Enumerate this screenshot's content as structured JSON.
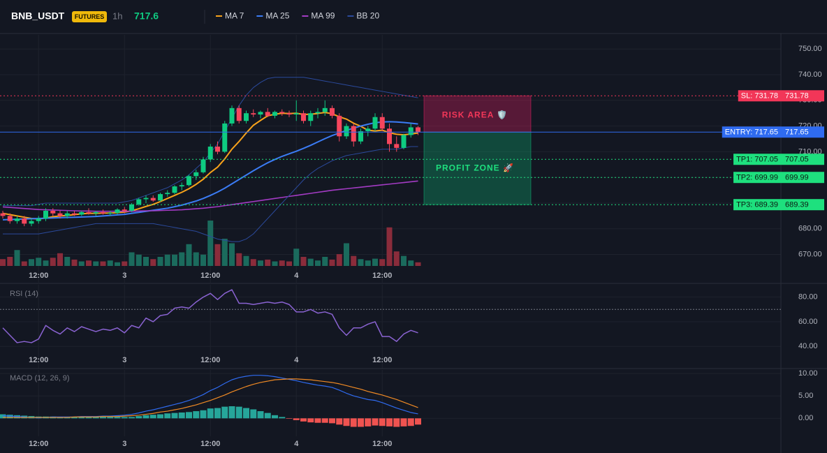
{
  "header": {
    "symbol": "BNB_USDT",
    "badge": "FUTURES",
    "interval": "1h",
    "price": 717.6
  },
  "chart_data": [
    {
      "type": "candlestick",
      "categories": [
        null,
        null,
        null,
        null,
        null,
        "12:00",
        null,
        null,
        null,
        null,
        null,
        null,
        null,
        null,
        null,
        null,
        null,
        "3",
        null,
        null,
        null,
        null,
        null,
        null,
        null,
        null,
        null,
        null,
        null,
        "12:00",
        null,
        null,
        null,
        null,
        null,
        null,
        null,
        null,
        null,
        null,
        null,
        "4",
        null,
        null,
        null,
        null,
        null,
        null,
        null,
        null,
        null,
        null,
        null,
        "12:00",
        null,
        null,
        null,
        null,
        null
      ],
      "open": [
        686,
        685,
        683,
        684,
        682,
        683,
        684,
        687,
        686,
        685,
        686,
        685.5,
        686.5,
        686,
        686.5,
        686,
        686.2,
        687.5,
        687,
        689.5,
        691.5,
        692,
        691,
        693.5,
        694,
        696.5,
        697,
        700.5,
        702,
        707,
        712,
        710,
        721,
        727,
        722,
        725,
        724.5,
        725.5,
        724,
        725.5,
        725,
        724.5,
        725,
        722,
        725,
        725.5,
        727,
        724,
        716,
        720,
        714,
        718,
        719,
        723.5,
        719,
        713,
        711.5,
        716.5,
        719.5
      ],
      "high": [
        687,
        686,
        685,
        685,
        684,
        685,
        688,
        688,
        687,
        687,
        687,
        687,
        688,
        687,
        687.5,
        687,
        688,
        688.5,
        690,
        692,
        693,
        693,
        694,
        695,
        697,
        698,
        701,
        703,
        708,
        713,
        714,
        722,
        728,
        728,
        726,
        726.5,
        726,
        727,
        726,
        726.5,
        726,
        730,
        726,
        726,
        727,
        730,
        728,
        725,
        721,
        721,
        719,
        720,
        725,
        725,
        721,
        716,
        717,
        721,
        720
      ],
      "low": [
        684,
        682,
        682,
        681,
        681,
        682,
        683,
        685,
        684,
        684,
        685,
        685,
        685.5,
        685,
        685.5,
        685,
        685.5,
        686,
        686.5,
        689,
        690,
        690.5,
        690.5,
        692.5,
        693.5,
        695,
        696.5,
        699,
        701.5,
        706,
        709,
        709.5,
        720,
        721,
        721,
        723.5,
        723,
        723.5,
        723,
        724,
        723.5,
        722,
        721,
        720,
        723,
        724,
        723,
        714,
        715,
        712,
        713,
        716,
        718,
        718,
        710,
        710,
        711,
        715.5,
        716.5
      ],
      "close": [
        685,
        683,
        684,
        682,
        683,
        684,
        687,
        686,
        685,
        686,
        685.5,
        686.5,
        686,
        686.5,
        686,
        686.2,
        687.5,
        687,
        689.5,
        691.5,
        692,
        691,
        693.5,
        694,
        696.5,
        697,
        700.5,
        702,
        707,
        712,
        710,
        721,
        727,
        722,
        725,
        724.5,
        725.5,
        724,
        725.5,
        725,
        724.5,
        725,
        722,
        725,
        725.5,
        727,
        724,
        716,
        720,
        714,
        718,
        719,
        723.5,
        719,
        713,
        711.5,
        716.5,
        719.5,
        717.65
      ],
      "up_color": "#0ecb81",
      "down_color": "#f6465d",
      "volume": [
        15,
        20,
        35,
        10,
        15,
        18,
        12,
        18,
        28,
        20,
        14,
        10,
        12,
        10,
        10,
        12,
        8,
        10,
        30,
        25,
        20,
        15,
        20,
        25,
        25,
        30,
        48,
        30,
        25,
        100,
        48,
        60,
        50,
        28,
        22,
        15,
        12,
        14,
        10,
        12,
        10,
        38,
        20,
        16,
        12,
        20,
        14,
        26,
        50,
        22,
        15,
        12,
        16,
        15,
        85,
        32,
        22,
        12,
        8
      ],
      "volume_up_color": "#1b6b5d",
      "volume_down_color": "#8a2c3b",
      "series": [
        {
          "name": "MA 7",
          "color": "#f7a21b",
          "values": [
            686,
            685.5,
            685,
            684.5,
            684,
            683.8,
            684.2,
            684.7,
            685,
            685.2,
            685.5,
            685.8,
            686,
            686,
            686.1,
            686.1,
            686.3,
            686.5,
            687,
            687.8,
            688.7,
            689.5,
            690.6,
            691.8,
            693,
            694.2,
            695.6,
            697.3,
            699.3,
            701.9,
            704,
            707.2,
            711,
            714,
            717.3,
            720.3,
            722.2,
            724,
            724.6,
            725,
            724.9,
            725,
            724.5,
            724.6,
            724.9,
            725.3,
            724.8,
            723.6,
            722.7,
            721.1,
            719.9,
            718.4,
            718.1,
            718.4,
            717.4,
            716.8,
            716.6,
            716.9,
            717.3
          ]
        },
        {
          "name": "MA 25",
          "color": "#3b7cf5",
          "values": [
            683.5,
            683.6,
            683.7,
            683.8,
            683.9,
            684,
            684.1,
            684.2,
            684.3,
            684.4,
            684.5,
            684.6,
            684.7,
            684.8,
            685,
            685.2,
            685.4,
            685.6,
            686,
            686.4,
            686.8,
            687.2,
            687.6,
            688,
            688.6,
            689.2,
            690,
            690.8,
            691.8,
            693,
            694.3,
            695.8,
            697.5,
            699.2,
            700.9,
            702.6,
            704.2,
            705.7,
            707,
            708.2,
            709.2,
            710.2,
            711.3,
            712.5,
            713.8,
            715.1,
            716.3,
            717.3,
            718.3,
            719.2,
            720,
            720.7,
            721.3,
            721.6,
            721.7,
            721.6,
            721.4,
            721.1,
            720.8
          ]
        },
        {
          "name": "MA 99",
          "color": "#a33bc4",
          "values": [
            688.5,
            688.3,
            688.1,
            687.9,
            687.7,
            687.5,
            687.4,
            687.3,
            687.2,
            687.1,
            687,
            686.9,
            686.9,
            686.8,
            686.8,
            686.8,
            686.8,
            686.8,
            686.8,
            686.9,
            687,
            687,
            687.1,
            687.2,
            687.3,
            687.4,
            687.6,
            687.8,
            688,
            688.3,
            688.6,
            689,
            689.4,
            689.8,
            690.2,
            690.6,
            691,
            691.4,
            691.8,
            692.2,
            692.6,
            693,
            693.4,
            693.8,
            694.2,
            694.6,
            695,
            695.3,
            695.6,
            695.9,
            696.2,
            696.5,
            696.8,
            697.1,
            697.4,
            697.7,
            698,
            698.3,
            698.6
          ]
        },
        {
          "name": "BB 20",
          "color": "#2b4a9c",
          "upper": [
            689,
            689,
            689,
            689,
            689,
            689.5,
            690,
            690,
            690,
            690,
            690,
            690,
            690,
            690,
            690,
            690,
            690,
            690.5,
            691,
            692,
            693,
            694,
            695,
            696,
            697.5,
            699,
            701,
            703.5,
            706,
            709.5,
            713,
            718,
            723,
            728,
            732,
            735,
            737,
            738.5,
            739,
            739,
            739,
            739,
            739,
            738.5,
            738,
            737.5,
            737,
            736.5,
            736,
            735.5,
            735,
            734.5,
            734,
            733.5,
            733,
            732.5,
            732,
            731.5,
            731
          ],
          "lower": [
            678,
            678,
            678,
            678,
            678,
            678,
            678.5,
            679,
            679.5,
            680,
            680.5,
            681,
            681.5,
            682,
            682,
            682,
            682,
            682,
            682,
            682,
            682,
            682,
            681.5,
            681,
            680.5,
            680,
            679.5,
            679,
            678,
            677,
            676,
            675.5,
            675,
            675,
            676,
            678,
            681,
            684,
            687,
            690,
            693,
            696,
            699,
            701.5,
            703.5,
            705,
            706.5,
            707.5,
            708.5,
            709,
            709.5,
            710,
            710.5,
            711,
            711,
            711,
            711.5,
            712,
            712
          ]
        }
      ],
      "ylim": [
        659,
        755.5
      ],
      "yticks": [
        {
          "value": 670,
          "label": "670.00"
        },
        {
          "value": 680,
          "label": "680.00"
        },
        {
          "value": 690,
          "label": "690.00"
        },
        {
          "value": 700,
          "label": "700.00"
        },
        {
          "value": 710,
          "label": "710.00"
        },
        {
          "value": 720,
          "label": "720.00"
        },
        {
          "value": 730,
          "label": "730.00"
        },
        {
          "value": 740,
          "label": "740.00"
        },
        {
          "value": 750,
          "label": "750.00"
        }
      ],
      "grid": true,
      "levels": [
        {
          "label": "SL: 731.78",
          "value": 731.78,
          "color": "#f23658",
          "text_color": "#ffffff",
          "dash": true
        },
        {
          "label": "ENTRY: 717.65",
          "value": 717.65,
          "color": "#2f6bf0",
          "text_color": "#ffffff",
          "dash": false
        },
        {
          "label": "TP1: 707.05",
          "value": 707.05,
          "color": "#1ee07e",
          "text_color": "#0b1a12",
          "dash": true
        },
        {
          "label": "TP2: 699.99",
          "value": 699.99,
          "color": "#1ee07e",
          "text_color": "#0b1a12",
          "dash": true
        },
        {
          "label": "TP3: 689.39",
          "value": 689.39,
          "color": "#1ee07e",
          "text_color": "#0b1a12",
          "dash": true
        }
      ],
      "risk_area": "RISK AREA 🛡️",
      "profit_zone": "PROFIT ZONE 🚀"
    },
    {
      "type": "line",
      "title": "RSI (14)",
      "categories": [
        null,
        null,
        null,
        null,
        null,
        "12:00",
        null,
        null,
        null,
        null,
        null,
        null,
        null,
        null,
        null,
        null,
        null,
        "3",
        null,
        null,
        null,
        null,
        null,
        null,
        null,
        null,
        null,
        null,
        null,
        "12:00",
        null,
        null,
        null,
        null,
        null,
        null,
        null,
        null,
        null,
        null,
        null,
        "4",
        null,
        null,
        null,
        null,
        null,
        null,
        null,
        null,
        null,
        null,
        null,
        "12:00",
        null,
        null,
        null,
        null,
        null
      ],
      "values": [
        55,
        49,
        43,
        44,
        43,
        46,
        57,
        53,
        50,
        55,
        52,
        56,
        54,
        52,
        54,
        53,
        55,
        51,
        57,
        55,
        63,
        60,
        65,
        66,
        71,
        72,
        71,
        76,
        80,
        83,
        78,
        83,
        86,
        75,
        75,
        74,
        75,
        76,
        75,
        76,
        74,
        68,
        68,
        70,
        67,
        68,
        66,
        55,
        49,
        55,
        55,
        58,
        60,
        48,
        48,
        44,
        50,
        53,
        51
      ],
      "color": "#8a63d2",
      "hline": 70,
      "ylim": [
        22,
        90
      ],
      "yticks": [
        {
          "value": 40,
          "label": "40.00"
        },
        {
          "value": 60,
          "label": "60.00"
        },
        {
          "value": 80,
          "label": "80.00"
        }
      ]
    },
    {
      "type": "macd",
      "title": "MACD (12, 26, 9)",
      "categories": [
        null,
        null,
        null,
        null,
        null,
        "12:00",
        null,
        null,
        null,
        null,
        null,
        null,
        null,
        null,
        null,
        null,
        null,
        "3",
        null,
        null,
        null,
        null,
        null,
        null,
        null,
        null,
        null,
        null,
        null,
        "12:00",
        null,
        null,
        null,
        null,
        null,
        null,
        null,
        null,
        null,
        null,
        null,
        "4",
        null,
        null,
        null,
        null,
        null,
        null,
        null,
        null,
        null,
        null,
        null,
        "12:00",
        null,
        null,
        null,
        null,
        null
      ],
      "macd": {
        "color": "#2f6bf0",
        "values": [
          0.6,
          0.5,
          0.4,
          0.3,
          0.2,
          0.1,
          0.2,
          0.3,
          0.3,
          0.3,
          0.3,
          0.4,
          0.4,
          0.4,
          0.5,
          0.5,
          0.6,
          0.7,
          0.9,
          1.2,
          1.6,
          1.9,
          2.3,
          2.7,
          3.1,
          3.5,
          4.0,
          4.6,
          5.3,
          6.2,
          6.9,
          7.8,
          8.6,
          9.1,
          9.4,
          9.6,
          9.6,
          9.5,
          9.3,
          9.0,
          8.7,
          8.4,
          8.0,
          7.7,
          7.4,
          7.2,
          6.9,
          6.3,
          5.6,
          5.0,
          4.6,
          4.2,
          4.0,
          3.5,
          2.9,
          2.3,
          1.8,
          1.3,
          1.0
        ]
      },
      "signal": {
        "color": "#f08a24",
        "values": [
          0.2,
          0.2,
          0.2,
          0.2,
          0.2,
          0.2,
          0.2,
          0.2,
          0.2,
          0.2,
          0.3,
          0.3,
          0.3,
          0.3,
          0.4,
          0.4,
          0.4,
          0.5,
          0.6,
          0.7,
          0.9,
          1.1,
          1.4,
          1.6,
          1.9,
          2.2,
          2.6,
          3.0,
          3.5,
          4.0,
          4.6,
          5.2,
          5.9,
          6.5,
          7.1,
          7.6,
          8.0,
          8.3,
          8.6,
          8.7,
          8.8,
          8.8,
          8.7,
          8.6,
          8.4,
          8.2,
          8.0,
          7.7,
          7.3,
          6.9,
          6.5,
          6.0,
          5.6,
          5.2,
          4.7,
          4.2,
          3.6,
          3.0,
          2.4
        ]
      },
      "histogram": {
        "up_color": "#26a69a",
        "down_color": "#ef5350",
        "values": [
          0.9,
          0.8,
          0.7,
          0.6,
          0.5,
          0.4,
          0.4,
          0.4,
          0.3,
          0.3,
          0.3,
          0.3,
          0.3,
          0.3,
          0.3,
          0.3,
          0.3,
          0.3,
          0.3,
          0.5,
          0.7,
          0.8,
          0.9,
          1.1,
          1.2,
          1.3,
          1.4,
          1.6,
          1.8,
          2.2,
          2.3,
          2.6,
          2.7,
          2.6,
          2.3,
          2.0,
          1.6,
          1.2,
          0.7,
          0.3,
          -0.1,
          -0.4,
          -0.7,
          -0.9,
          -1.0,
          -1.0,
          -1.1,
          -1.4,
          -1.7,
          -1.9,
          -1.9,
          -1.8,
          -1.6,
          -1.7,
          -1.8,
          -1.9,
          -1.8,
          -1.7,
          -1.4
        ]
      },
      "ylim": [
        -4,
        10.8
      ],
      "yticks": [
        {
          "value": 0,
          "label": "0.00"
        },
        {
          "value": 5,
          "label": "5.00"
        },
        {
          "value": 10,
          "label": "10.00"
        }
      ]
    }
  ]
}
